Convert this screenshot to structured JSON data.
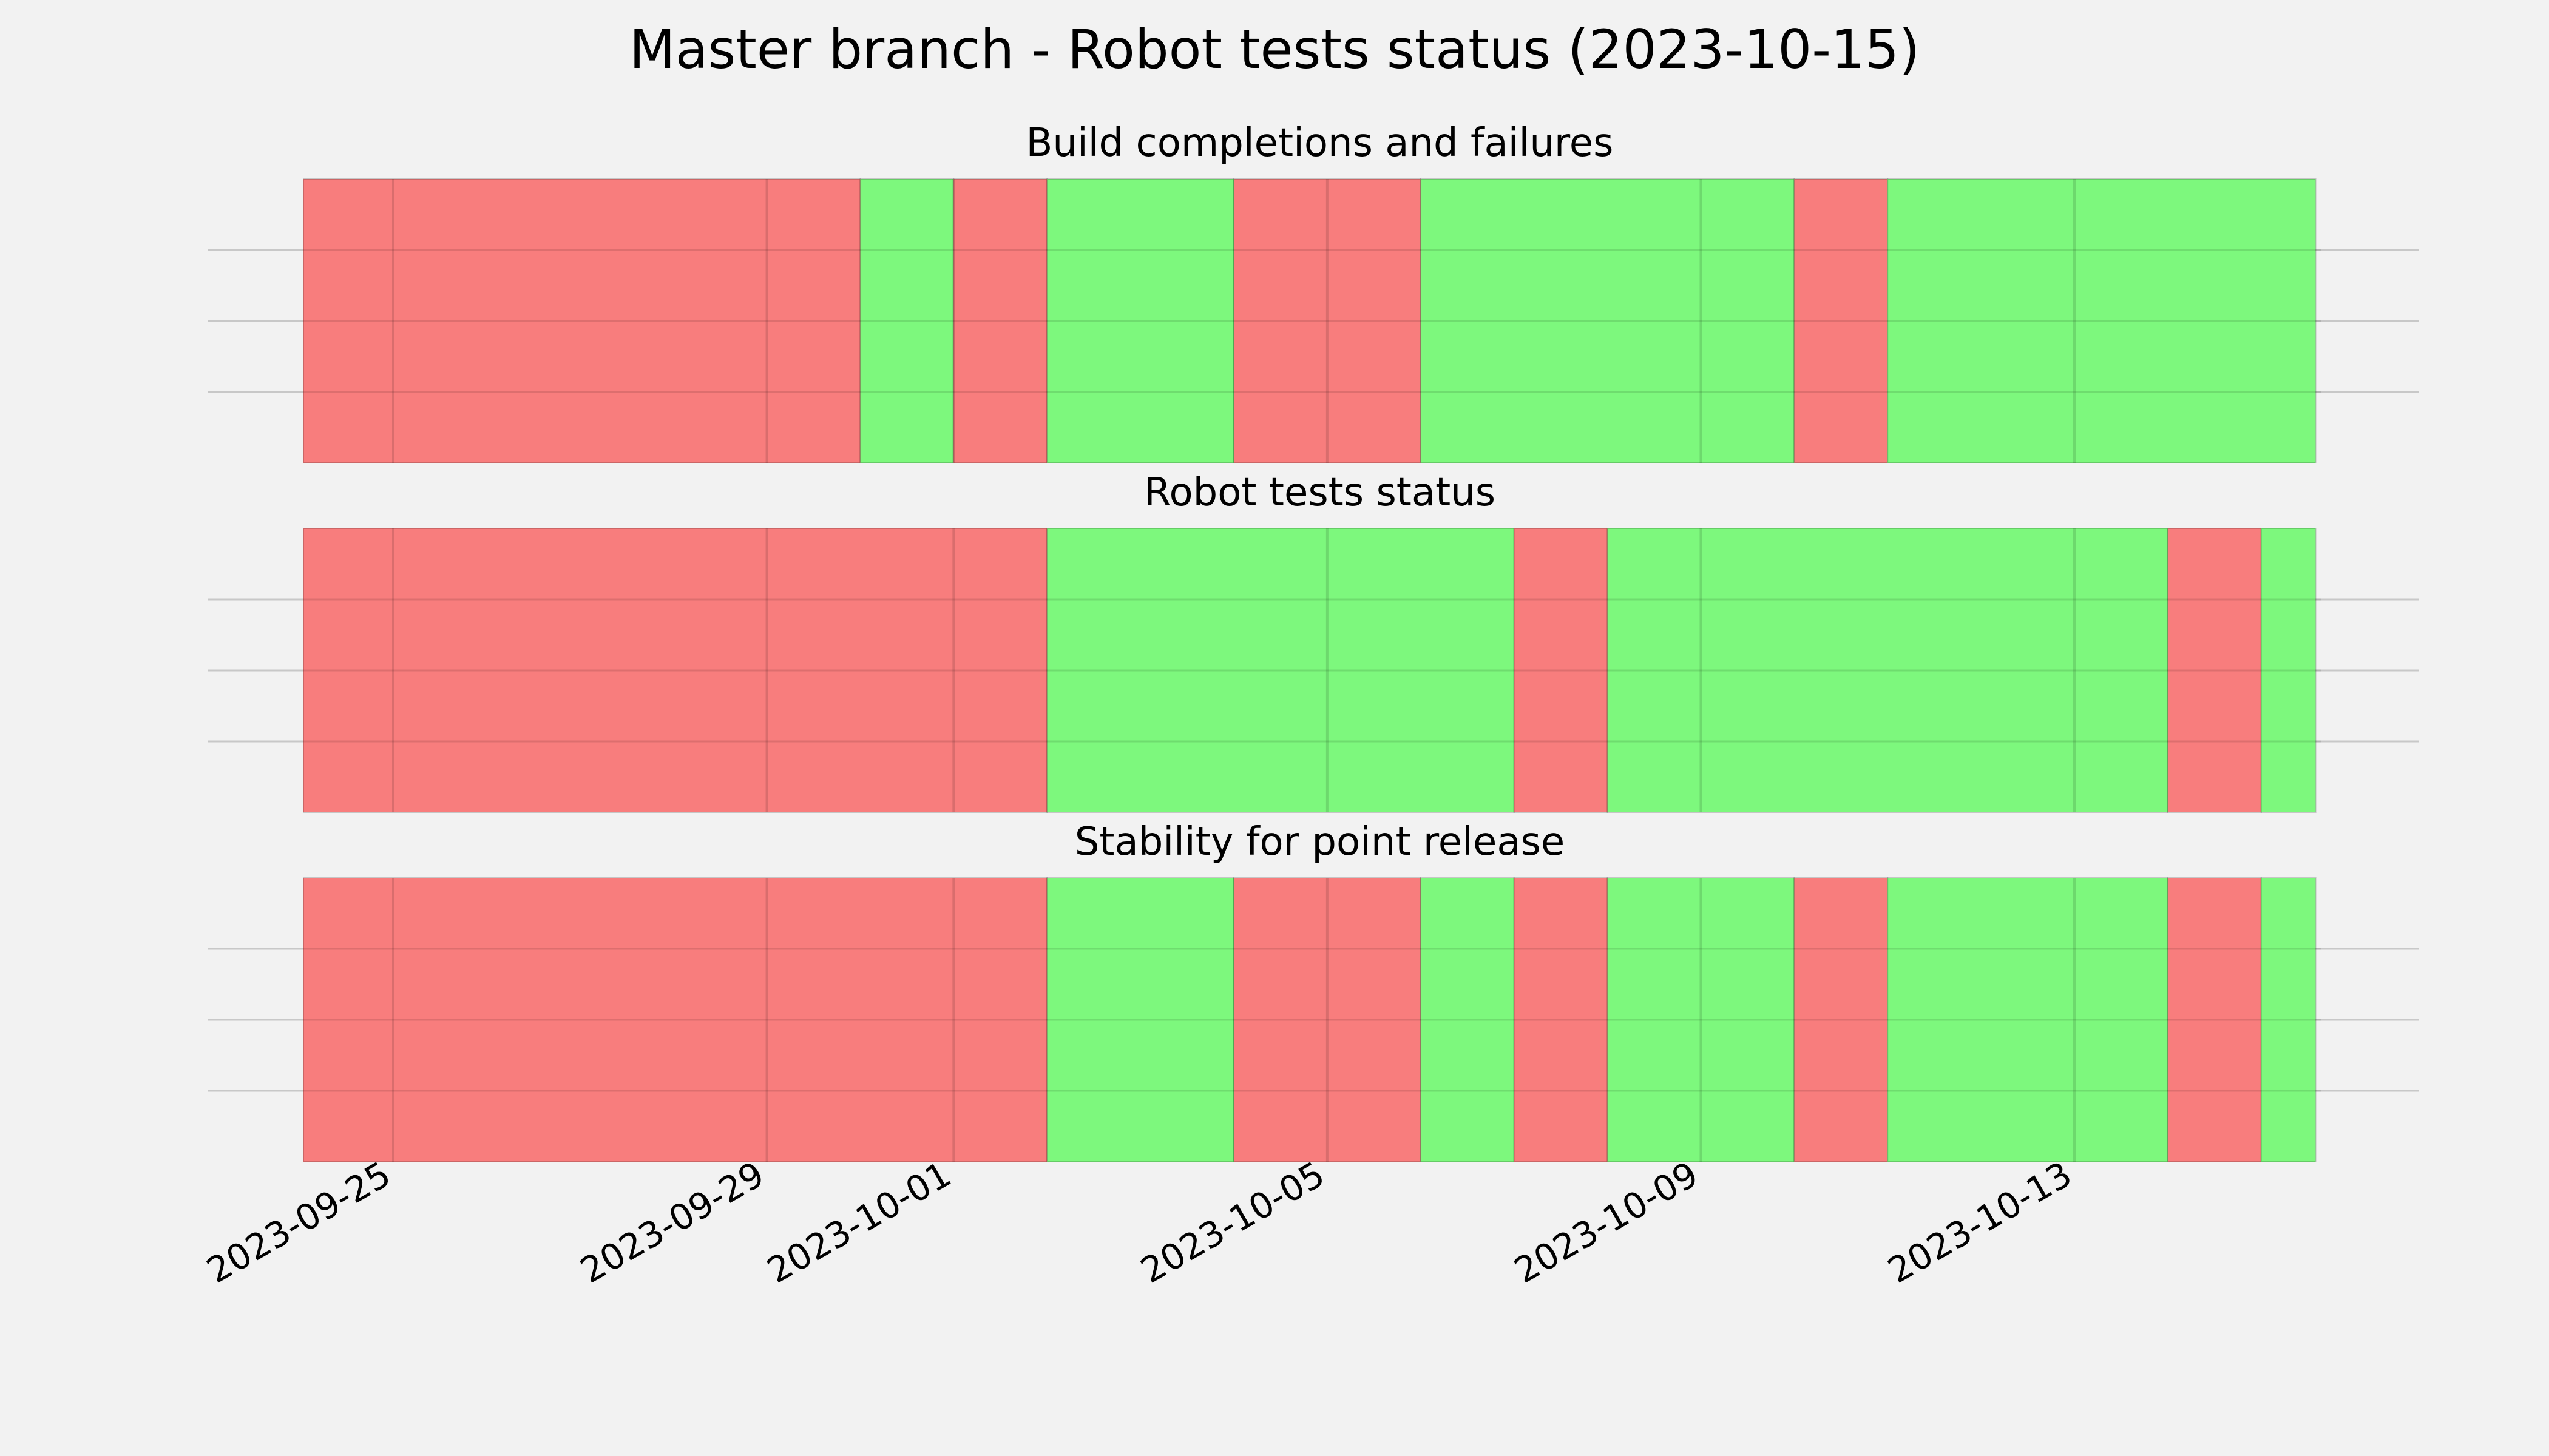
{
  "chart_data": {
    "type": "timeline",
    "title": "Master branch - Robot tests status (2023-10-15)",
    "colors": {
      "fail": "#f87878",
      "pass": "#78f878",
      "background": "#f2f2f2",
      "grid": "#c8c8c8"
    },
    "x_range": [
      "2023-09-24",
      "2023-10-15"
    ],
    "x_ticks": [
      "2023-09-25",
      "2023-09-29",
      "2023-10-01",
      "2023-10-05",
      "2023-10-09",
      "2023-10-13"
    ],
    "panels": [
      {
        "title": "Build completions and failures",
        "segments": [
          {
            "start": "2023-09-24",
            "end": "2023-09-30T00:00",
            "status": "fail"
          },
          {
            "start": "2023-09-30T00:00",
            "end": "2023-10-01T00:00",
            "status": "pass"
          },
          {
            "start": "2023-10-01T00:00",
            "end": "2023-10-02T00:00",
            "status": "fail"
          },
          {
            "start": "2023-10-02T00:00",
            "end": "2023-10-04T00:00",
            "status": "pass"
          },
          {
            "start": "2023-10-04T00:00",
            "end": "2023-10-06T00:00",
            "status": "fail"
          },
          {
            "start": "2023-10-06T00:00",
            "end": "2023-10-10T00:00",
            "status": "pass"
          },
          {
            "start": "2023-10-10T00:00",
            "end": "2023-10-11T00:00",
            "status": "fail"
          },
          {
            "start": "2023-10-11T00:00",
            "end": "2023-10-15T14:00",
            "status": "pass"
          }
        ]
      },
      {
        "title": "Robot tests status",
        "segments": [
          {
            "start": "2023-09-24",
            "end": "2023-10-02T00:00",
            "status": "fail"
          },
          {
            "start": "2023-10-02T00:00",
            "end": "2023-10-07T00:00",
            "status": "pass"
          },
          {
            "start": "2023-10-07T00:00",
            "end": "2023-10-08T00:00",
            "status": "fail"
          },
          {
            "start": "2023-10-08T00:00",
            "end": "2023-10-14T00:00",
            "status": "pass"
          },
          {
            "start": "2023-10-14T00:00",
            "end": "2023-10-15T00:00",
            "status": "fail"
          },
          {
            "start": "2023-10-15T00:00",
            "end": "2023-10-15T14:00",
            "status": "pass"
          }
        ]
      },
      {
        "title": "Stability for point release",
        "segments": [
          {
            "start": "2023-09-24",
            "end": "2023-10-02T00:00",
            "status": "fail"
          },
          {
            "start": "2023-10-02T00:00",
            "end": "2023-10-04T00:00",
            "status": "pass"
          },
          {
            "start": "2023-10-04T00:00",
            "end": "2023-10-06T00:00",
            "status": "fail"
          },
          {
            "start": "2023-10-06T00:00",
            "end": "2023-10-07T00:00",
            "status": "pass"
          },
          {
            "start": "2023-10-07T00:00",
            "end": "2023-10-08T00:00",
            "status": "fail"
          },
          {
            "start": "2023-10-08T00:00",
            "end": "2023-10-10T00:00",
            "status": "pass"
          },
          {
            "start": "2023-10-10T00:00",
            "end": "2023-10-11T00:00",
            "status": "fail"
          },
          {
            "start": "2023-10-11T00:00",
            "end": "2023-10-14T00:00",
            "status": "pass"
          },
          {
            "start": "2023-10-14T00:00",
            "end": "2023-10-15T00:00",
            "status": "fail"
          },
          {
            "start": "2023-10-15T00:00",
            "end": "2023-10-15T14:00",
            "status": "pass"
          }
        ]
      }
    ]
  }
}
